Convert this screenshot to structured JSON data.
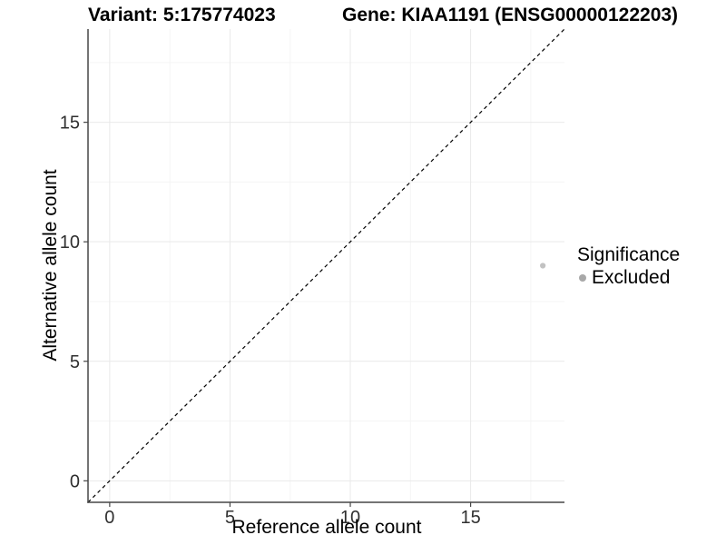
{
  "chart_data": {
    "type": "scatter",
    "title_parts": {
      "variant": "Variant: 5:175774023",
      "gene": "Gene: KIAA1191 (ENSG00000122203)"
    },
    "xlabel": "Reference allele count",
    "ylabel": "Alternative allele count",
    "xlim": [
      -0.9,
      18.9
    ],
    "ylim": [
      -0.9,
      18.9
    ],
    "ticks": [
      0,
      5,
      10,
      15
    ],
    "minor_gridlines": [
      2.5,
      7.5,
      12.5,
      17.5
    ],
    "grid": true,
    "reference_line": {
      "type": "identity y=x",
      "style": "dashed",
      "color": "#000000"
    },
    "series": [
      {
        "name": "Excluded",
        "color": "#c2c2c2",
        "points": [
          {
            "x": 18,
            "y": 9
          }
        ]
      }
    ],
    "legend": {
      "position": "right",
      "title": "Significance",
      "items": [
        {
          "label": "Excluded",
          "color": "#a8a8a8",
          "marker": "circle"
        }
      ]
    },
    "colors": {
      "background": "#ffffff",
      "axis_line": "#474747",
      "major_grid": "#e9e9e9",
      "minor_grid": "#f5f5f5",
      "tick_text": "#303030",
      "title_text": "#000000"
    }
  }
}
